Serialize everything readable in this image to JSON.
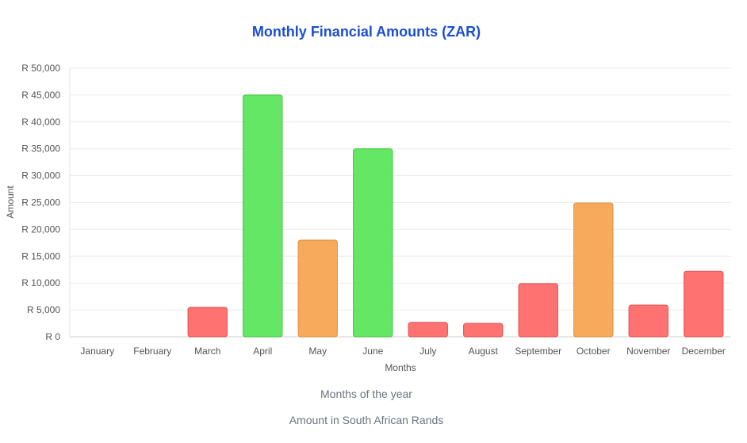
{
  "chart_data": {
    "type": "bar",
    "title": "Monthly Financial Amounts (ZAR)",
    "xlabel": "Months",
    "ylabel": "Amount",
    "categories": [
      "January",
      "February",
      "March",
      "April",
      "May",
      "June",
      "July",
      "August",
      "September",
      "October",
      "November",
      "December"
    ],
    "values": [
      0,
      0,
      5500,
      45000,
      18000,
      35000,
      2700,
      2500,
      9900,
      24900,
      5900,
      12200
    ],
    "colors": [
      "#ff6b6b",
      "#ff6b6b",
      "#ff6b6b",
      "#5ce65c",
      "#f7a654",
      "#5ce65c",
      "#ff6b6b",
      "#ff6b6b",
      "#ff6b6b",
      "#f7a654",
      "#ff6b6b",
      "#ff6b6b"
    ],
    "ylim": [
      0,
      50000
    ],
    "yticks": [
      "R 0",
      "R 5,000",
      "R 10,000",
      "R 15,000",
      "R 20,000",
      "R 25,000",
      "R 30,000",
      "R 35,000",
      "R 40,000",
      "R 45,000",
      "R 50,000"
    ],
    "grid": true,
    "legend": "none"
  },
  "captions": {
    "line1": "Months of the year",
    "line2": "Amount in South African Rands"
  }
}
